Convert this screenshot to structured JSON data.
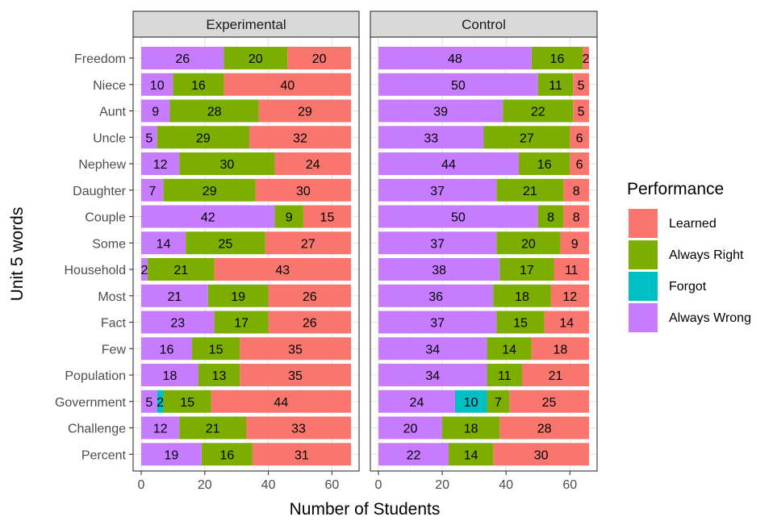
{
  "chart_data": {
    "type": "bar",
    "stacked": true,
    "orientation": "horizontal",
    "xlabel": "Number of Students",
    "ylabel": "Unit 5 words",
    "xlim": [
      0,
      66
    ],
    "x_ticks": [
      "0",
      "20",
      "40",
      "60"
    ],
    "grid": true,
    "legend_position": "right",
    "legend_title": "Performance",
    "categories": [
      "Freedom",
      "Niece",
      "Aunt",
      "Uncle",
      "Nephew",
      "Daughter",
      "Couple",
      "Some",
      "Household",
      "Most",
      "Fact",
      "Few",
      "Population",
      "Government",
      "Challenge",
      "Percent"
    ],
    "legend": [
      {
        "name": "Learned",
        "color": "#F8766D"
      },
      {
        "name": "Always Right",
        "color": "#7CAE00"
      },
      {
        "name": "Forgot",
        "color": "#00BFC4"
      },
      {
        "name": "Always Wrong",
        "color": "#C77CFF"
      }
    ],
    "panels": [
      {
        "title": "Experimental",
        "series": [
          {
            "name": "Always Wrong",
            "values": [
              26,
              10,
              9,
              5,
              12,
              7,
              42,
              14,
              2,
              21,
              23,
              16,
              18,
              5,
              12,
              19
            ]
          },
          {
            "name": "Forgot",
            "values": [
              0,
              0,
              0,
              0,
              0,
              0,
              0,
              0,
              0,
              0,
              0,
              0,
              0,
              2,
              0,
              0
            ]
          },
          {
            "name": "Always Right",
            "values": [
              20,
              16,
              28,
              29,
              30,
              29,
              9,
              25,
              21,
              19,
              17,
              15,
              13,
              15,
              21,
              16
            ]
          },
          {
            "name": "Learned",
            "values": [
              20,
              40,
              29,
              32,
              24,
              30,
              15,
              27,
              43,
              26,
              26,
              35,
              35,
              44,
              33,
              31
            ]
          }
        ]
      },
      {
        "title": "Control",
        "series": [
          {
            "name": "Always Wrong",
            "values": [
              48,
              50,
              39,
              33,
              44,
              37,
              50,
              37,
              38,
              36,
              37,
              34,
              34,
              24,
              20,
              22
            ]
          },
          {
            "name": "Forgot",
            "values": [
              0,
              0,
              0,
              0,
              0,
              0,
              0,
              0,
              0,
              0,
              0,
              0,
              0,
              10,
              0,
              0
            ]
          },
          {
            "name": "Always Right",
            "values": [
              16,
              11,
              22,
              27,
              16,
              21,
              8,
              20,
              17,
              18,
              15,
              14,
              11,
              7,
              18,
              14
            ]
          },
          {
            "name": "Learned",
            "values": [
              2,
              5,
              5,
              6,
              6,
              8,
              8,
              9,
              11,
              12,
              14,
              18,
              21,
              25,
              28,
              30
            ]
          }
        ]
      }
    ]
  }
}
